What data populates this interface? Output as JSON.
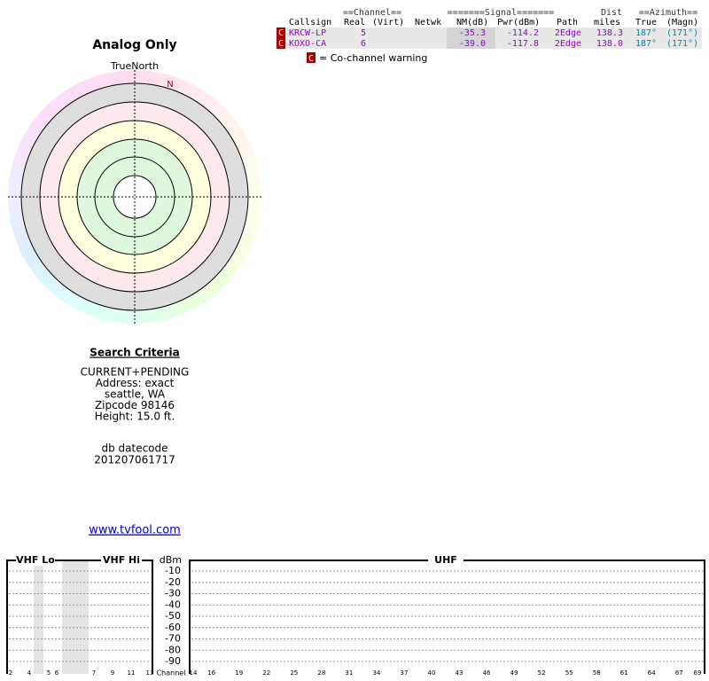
{
  "report": {
    "title": "Analog Only",
    "true_north": "TrueNorth",
    "north": "N"
  },
  "table": {
    "group_headers": [
      "==Channel==",
      "=======Signal=======",
      "Dist",
      "==Azimuth=="
    ],
    "columns": [
      "Callsign",
      "Real",
      "(Virt)",
      "Netwk",
      "NM(dB)",
      "Pwr(dBm)",
      "Path",
      "miles",
      "True",
      "(Magn)"
    ],
    "marker": "C",
    "rows": [
      [
        "KRCW-LP",
        "5",
        "-35.3",
        "-114.2",
        "2Edge",
        "138.3",
        "187°",
        "(171°)"
      ],
      [
        "KOXO-CA",
        "6",
        "-39.0",
        "-117.8",
        "2Edge",
        "138.0",
        "187°",
        "(171°)"
      ]
    ]
  },
  "legend": "= Co-channel warning",
  "search": {
    "title": "Search Criteria",
    "lines": [
      "CURRENT+PENDING",
      "Address: exact",
      "seattle, WA",
      "Zipcode 98146",
      "Height: 15.0 ft."
    ],
    "db_label": "db datecode",
    "db_value": "201207061717"
  },
  "link": "www.tvfool.com",
  "spectrum": {
    "bands": [
      "VHF Lo",
      "VHF Hi",
      "UHF"
    ],
    "unit": "dBm",
    "dbm_ticks": [
      -10,
      -20,
      -30,
      -40,
      -50,
      -60,
      -70,
      -80,
      -90
    ],
    "vhf_channels": [
      2,
      4,
      5,
      6,
      7,
      9,
      11,
      13
    ],
    "uhf_channels": [
      14,
      16,
      19,
      22,
      25,
      28,
      31,
      34,
      37,
      40,
      43,
      46,
      49,
      52,
      55,
      58,
      61,
      64,
      67,
      69
    ],
    "channel_label": "Channel"
  }
}
